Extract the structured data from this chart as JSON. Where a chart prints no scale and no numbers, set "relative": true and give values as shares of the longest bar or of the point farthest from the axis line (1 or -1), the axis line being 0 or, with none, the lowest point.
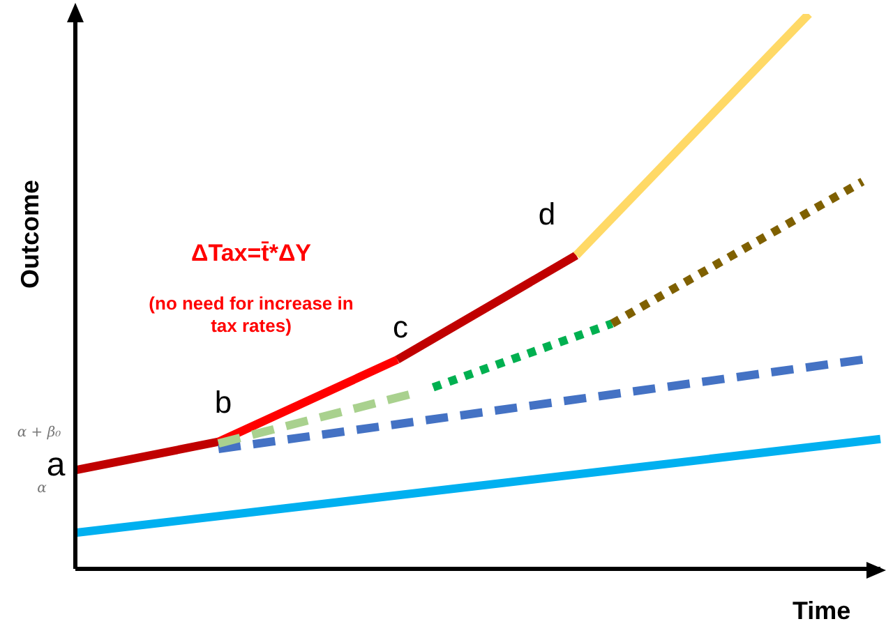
{
  "chart_data": {
    "type": "line",
    "relative": true,
    "xlabel": "Time",
    "ylabel": "Outcome",
    "marker": "none",
    "categories": [
      null,
      null,
      null,
      null,
      null,
      null,
      null,
      null,
      null,
      null,
      null,
      null,
      null,
      null,
      null,
      null,
      null,
      null,
      null,
      null,
      null,
      null,
      null,
      null,
      null,
      null,
      null,
      null,
      null,
      null,
      null,
      null,
      null,
      null,
      null,
      null,
      null,
      null,
      null,
      null,
      null,
      null,
      null,
      null,
      null,
      null
    ],
    "series": [
      {
        "color": "#00b0f0",
        "line_style": "solid",
        "values": [
          0.065,
          null,
          null,
          null,
          null,
          null,
          null,
          null,
          null,
          null,
          null,
          null,
          null,
          null,
          null,
          null,
          null,
          null,
          null,
          null,
          null,
          null,
          null,
          null,
          null,
          null,
          null,
          null,
          null,
          null,
          null,
          null,
          null,
          null,
          null,
          null,
          null,
          null,
          null,
          null,
          null,
          null,
          null,
          null,
          null,
          0.234
        ]
      },
      {
        "color": "#c00000",
        "line_style": "solid",
        "values": [
          0.178,
          null,
          null,
          null,
          null,
          null,
          null,
          null,
          0.229,
          null,
          null,
          null,
          null,
          null,
          null,
          null,
          null,
          null,
          null,
          null,
          null,
          null,
          null,
          null,
          null,
          null,
          null,
          null,
          null,
          null,
          null,
          null,
          null,
          null,
          null,
          null,
          null,
          null,
          null,
          null,
          null,
          null,
          null,
          null,
          null,
          null
        ]
      },
      {
        "color": "#ff0000",
        "line_style": "solid",
        "values": [
          null,
          null,
          null,
          null,
          null,
          null,
          null,
          null,
          0.229,
          null,
          null,
          null,
          null,
          null,
          null,
          null,
          null,
          null,
          0.377,
          null,
          null,
          null,
          null,
          null,
          null,
          null,
          null,
          null,
          null,
          null,
          null,
          null,
          null,
          null,
          null,
          null,
          null,
          null,
          null,
          null,
          null,
          null,
          null,
          null,
          null,
          null
        ]
      },
      {
        "color": "#c00000",
        "line_style": "solid",
        "values": [
          null,
          null,
          null,
          null,
          null,
          null,
          null,
          null,
          null,
          null,
          null,
          null,
          null,
          null,
          null,
          null,
          null,
          null,
          0.377,
          null,
          null,
          null,
          null,
          null,
          null,
          null,
          null,
          null,
          0.565,
          null,
          null,
          null,
          null,
          null,
          null,
          null,
          null,
          null,
          null,
          null,
          null,
          null,
          null,
          null,
          null,
          null
        ]
      },
      {
        "color": "#ffd966",
        "line_style": "solid",
        "values": [
          null,
          null,
          null,
          null,
          null,
          null,
          null,
          null,
          null,
          null,
          null,
          null,
          null,
          null,
          null,
          null,
          null,
          null,
          null,
          null,
          null,
          null,
          null,
          null,
          null,
          null,
          null,
          null,
          0.565,
          null,
          null,
          null,
          null,
          null,
          null,
          null,
          null,
          null,
          null,
          null,
          null,
          1,
          null,
          null,
          null,
          null
        ]
      },
      {
        "color": "#4472c4",
        "line_style": "dashed",
        "values": [
          null,
          null,
          null,
          null,
          null,
          null,
          null,
          null,
          0.216,
          null,
          null,
          null,
          null,
          null,
          null,
          null,
          null,
          null,
          null,
          null,
          null,
          null,
          null,
          null,
          null,
          null,
          null,
          null,
          null,
          null,
          null,
          null,
          null,
          null,
          null,
          null,
          null,
          null,
          null,
          null,
          null,
          null,
          null,
          null,
          0.377,
          null
        ]
      },
      {
        "color": "#a9d18e",
        "line_style": "dashed",
        "values": [
          null,
          null,
          null,
          null,
          null,
          null,
          null,
          null,
          0.226,
          null,
          null,
          null,
          null,
          null,
          null,
          null,
          null,
          null,
          null,
          0.317,
          null,
          null,
          null,
          null,
          null,
          null,
          null,
          null,
          null,
          null,
          null,
          null,
          null,
          null,
          null,
          null,
          null,
          null,
          null,
          null,
          null,
          null,
          null,
          null,
          null,
          null
        ]
      },
      {
        "color": "#00b050",
        "line_style": "dotted",
        "values": [
          null,
          null,
          null,
          null,
          null,
          null,
          null,
          null,
          null,
          null,
          null,
          null,
          null,
          null,
          null,
          null,
          null,
          null,
          null,
          null,
          0.327,
          null,
          null,
          null,
          null,
          null,
          null,
          null,
          null,
          null,
          0.442,
          null,
          null,
          null,
          null,
          null,
          null,
          null,
          null,
          null,
          null,
          null,
          null,
          null,
          null,
          null
        ]
      },
      {
        "color": "#7f6000",
        "line_style": "dotted",
        "values": [
          null,
          null,
          null,
          null,
          null,
          null,
          null,
          null,
          null,
          null,
          null,
          null,
          null,
          null,
          null,
          null,
          null,
          null,
          null,
          null,
          null,
          null,
          null,
          null,
          null,
          null,
          null,
          null,
          null,
          null,
          0.442,
          null,
          null,
          null,
          null,
          null,
          null,
          null,
          null,
          null,
          null,
          null,
          null,
          null,
          0.698,
          null
        ]
      }
    ],
    "annotations": [
      "a",
      "b",
      "c",
      "d",
      "ΔTax=t̄*ΔY",
      "(no need for increase in tax rates)",
      "α + β₀",
      "α"
    ]
  }
}
